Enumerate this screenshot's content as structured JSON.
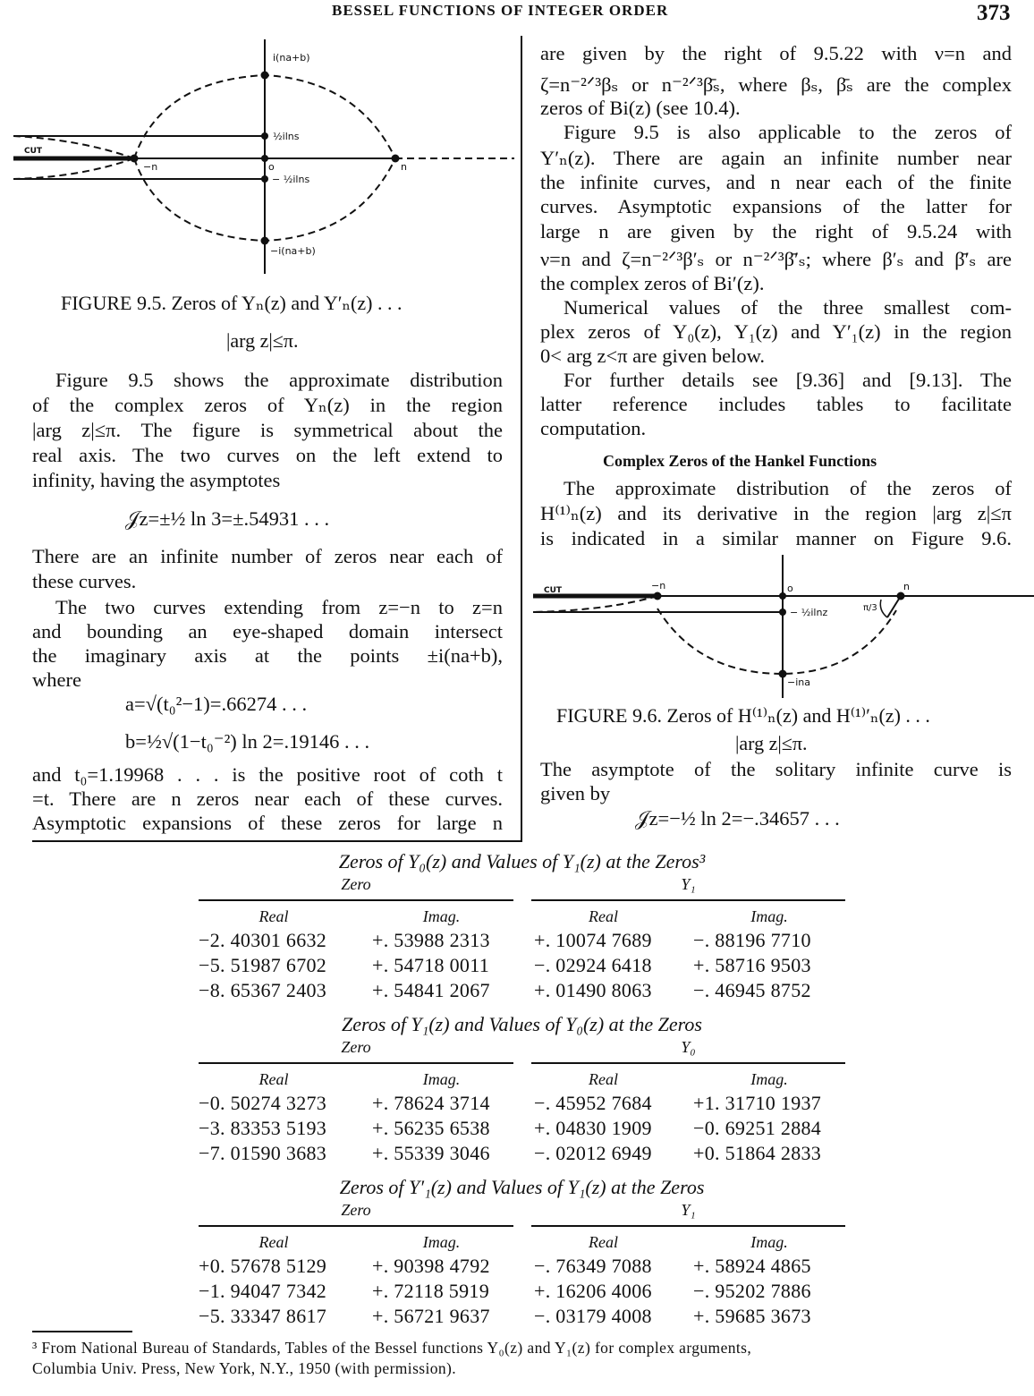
{
  "header": {
    "running_title": "BESSEL FUNCTIONS OF INTEGER ORDER",
    "page_number": "373"
  },
  "figure_9_5": {
    "labels": {
      "top": "i(na+b)",
      "half_ln3": "½ilns",
      "zero": "o",
      "neg_half_ln3": "− ½ilns",
      "bottom": "−i(na+b)",
      "neg_n": "−n",
      "n": "n",
      "cut": "CUT"
    },
    "caption": "FIGURE 9.5.  Zeros of Yₙ(z) and Y′ₙ(z) . . .",
    "caption_line2": "|arg z|≤π."
  },
  "figure_9_6": {
    "labels": {
      "neg_n": "−n",
      "zero": "o",
      "n": "n",
      "neg_half_ln2": "− ½ilnz",
      "angle": "π/3",
      "bottom": "−ina",
      "cut": "CUT"
    },
    "caption": "FIGURE 9.6.  Zeros of H⁽¹⁾ₙ(z) and H⁽¹⁾′ₙ(z) . . .",
    "caption_line2": "|arg z|≤π."
  },
  "left_column": [
    "Figure 9.5 shows the approximate distribution",
    "of the complex zeros of Yₙ(z) in the region",
    "|arg z|≤π.  The figure is symmetrical about the",
    "real axis.  The two curves on the left extend to",
    "infinity, having the asymptotes",
    "𝒥z=±½ ln 3=±.54931 . . .",
    "There are an infinite number of zeros near each of",
    "these curves.",
    "The two curves extending from z=−n to z=n",
    "and bounding an eye-shaped domain intersect",
    "the imaginary axis at the points ±i(na+b),",
    "where",
    "a=√(t₀²−1)=.66274 . . .",
    "b=½√(1−t₀⁻²) ln 2=.19146 . . .",
    "and t₀=1.19968 . . . is the positive root of coth t",
    "=t.  There are n zeros near each of these curves.",
    "Asymptotic expansions of these zeros for large n"
  ],
  "right_column": [
    "are given by the right of 9.5.22 with ν=n and",
    "ζ=n⁻²ᐟ³βₛ or n⁻²ᐟ³β̄ₛ, where βₛ, β̄ₛ are the complex",
    "zeros of Bi(z) (see 10.4).",
    "Figure 9.5 is also applicable to the zeros of",
    "Y′ₙ(z).  There are again an infinite number near",
    "the infinite curves, and n near each of the finite",
    "curves.  Asymptotic expansions of the latter for",
    "large n are given by the right of 9.5.24 with",
    "ν=n and ζ=n⁻²ᐟ³β′ₛ or n⁻²ᐟ³β̄′ₛ; where β′ₛ and β̄′ₛ are",
    "the complex zeros of Bi′(z).",
    "Numerical values of the three smallest com-",
    "plex zeros of Y₀(z), Y₁(z) and Y′₁(z) in the region",
    "0< arg z<π are given below.",
    "For further details see [9.36] and [9.13].  The",
    "latter reference includes tables to facilitate",
    "computation.",
    "The approximate distribution of the zeros of",
    "H⁽¹⁾ₙ(z) and its derivative in the region |arg z|≤π",
    "is indicated in a similar manner on Figure 9.6.",
    "The asymptote of the solitary infinite curve is",
    "given by",
    "𝒥z=−½ ln 2=−.34657 . . ."
  ],
  "section_heading": "Complex Zeros of the Hankel Functions",
  "tables": [
    {
      "title": "Zeros of Y₀(z) and Values of Y₁(z) at the Zeros³",
      "left_group": "Zero",
      "right_group": "Y₁",
      "columns": [
        "Real",
        "Imag.",
        "Real",
        "Imag."
      ],
      "rows": [
        [
          "−2. 40301 6632",
          "+. 53988 2313",
          "+. 10074 7689",
          "−. 88196 7710"
        ],
        [
          "−5. 51987 6702",
          "+. 54718 0011",
          "−. 02924 6418",
          "+. 58716 9503"
        ],
        [
          "−8. 65367 2403",
          "+. 54841 2067",
          "+. 01490 8063",
          "−. 46945 8752"
        ]
      ]
    },
    {
      "title": "Zeros of Y₁(z) and Values of Y₀(z) at the Zeros",
      "left_group": "Zero",
      "right_group": "Y₀",
      "columns": [
        "Real",
        "Imag.",
        "Real",
        "Imag."
      ],
      "rows": [
        [
          "−0. 50274 3273",
          "+. 78624 3714",
          "−. 45952 7684",
          "+1. 31710 1937"
        ],
        [
          "−3. 83353 5193",
          "+. 56235 6538",
          "+. 04830 1909",
          "−0. 69251 2884"
        ],
        [
          "−7. 01590 3683",
          "+. 55339 3046",
          "−. 02012 6949",
          "+0. 51864 2833"
        ]
      ]
    },
    {
      "title": "Zeros of Y′₁(z) and Values of Y₁(z) at the Zeros",
      "left_group": "Zero",
      "right_group": "Y₁",
      "columns": [
        "Real",
        "Imag.",
        "Real",
        "Imag."
      ],
      "rows": [
        [
          "+0. 57678 5129",
          "+. 90398 4792",
          "−. 76349 7088",
          "+. 58924 4865"
        ],
        [
          "−1. 94047 7342",
          "+. 72118 5919",
          "+. 16206 4006",
          "−. 95202 7886"
        ],
        [
          "−5. 33347 8617",
          "+. 56721 9637",
          "−. 03179 4008",
          "+. 59685 3673"
        ]
      ]
    }
  ],
  "footnote": [
    "³ From National Bureau of Standards, Tables of the Bessel functions Y₀(z) and Y₁(z) for complex arguments,",
    "Columbia Univ. Press, New York, N.Y., 1950 (with permission)."
  ]
}
